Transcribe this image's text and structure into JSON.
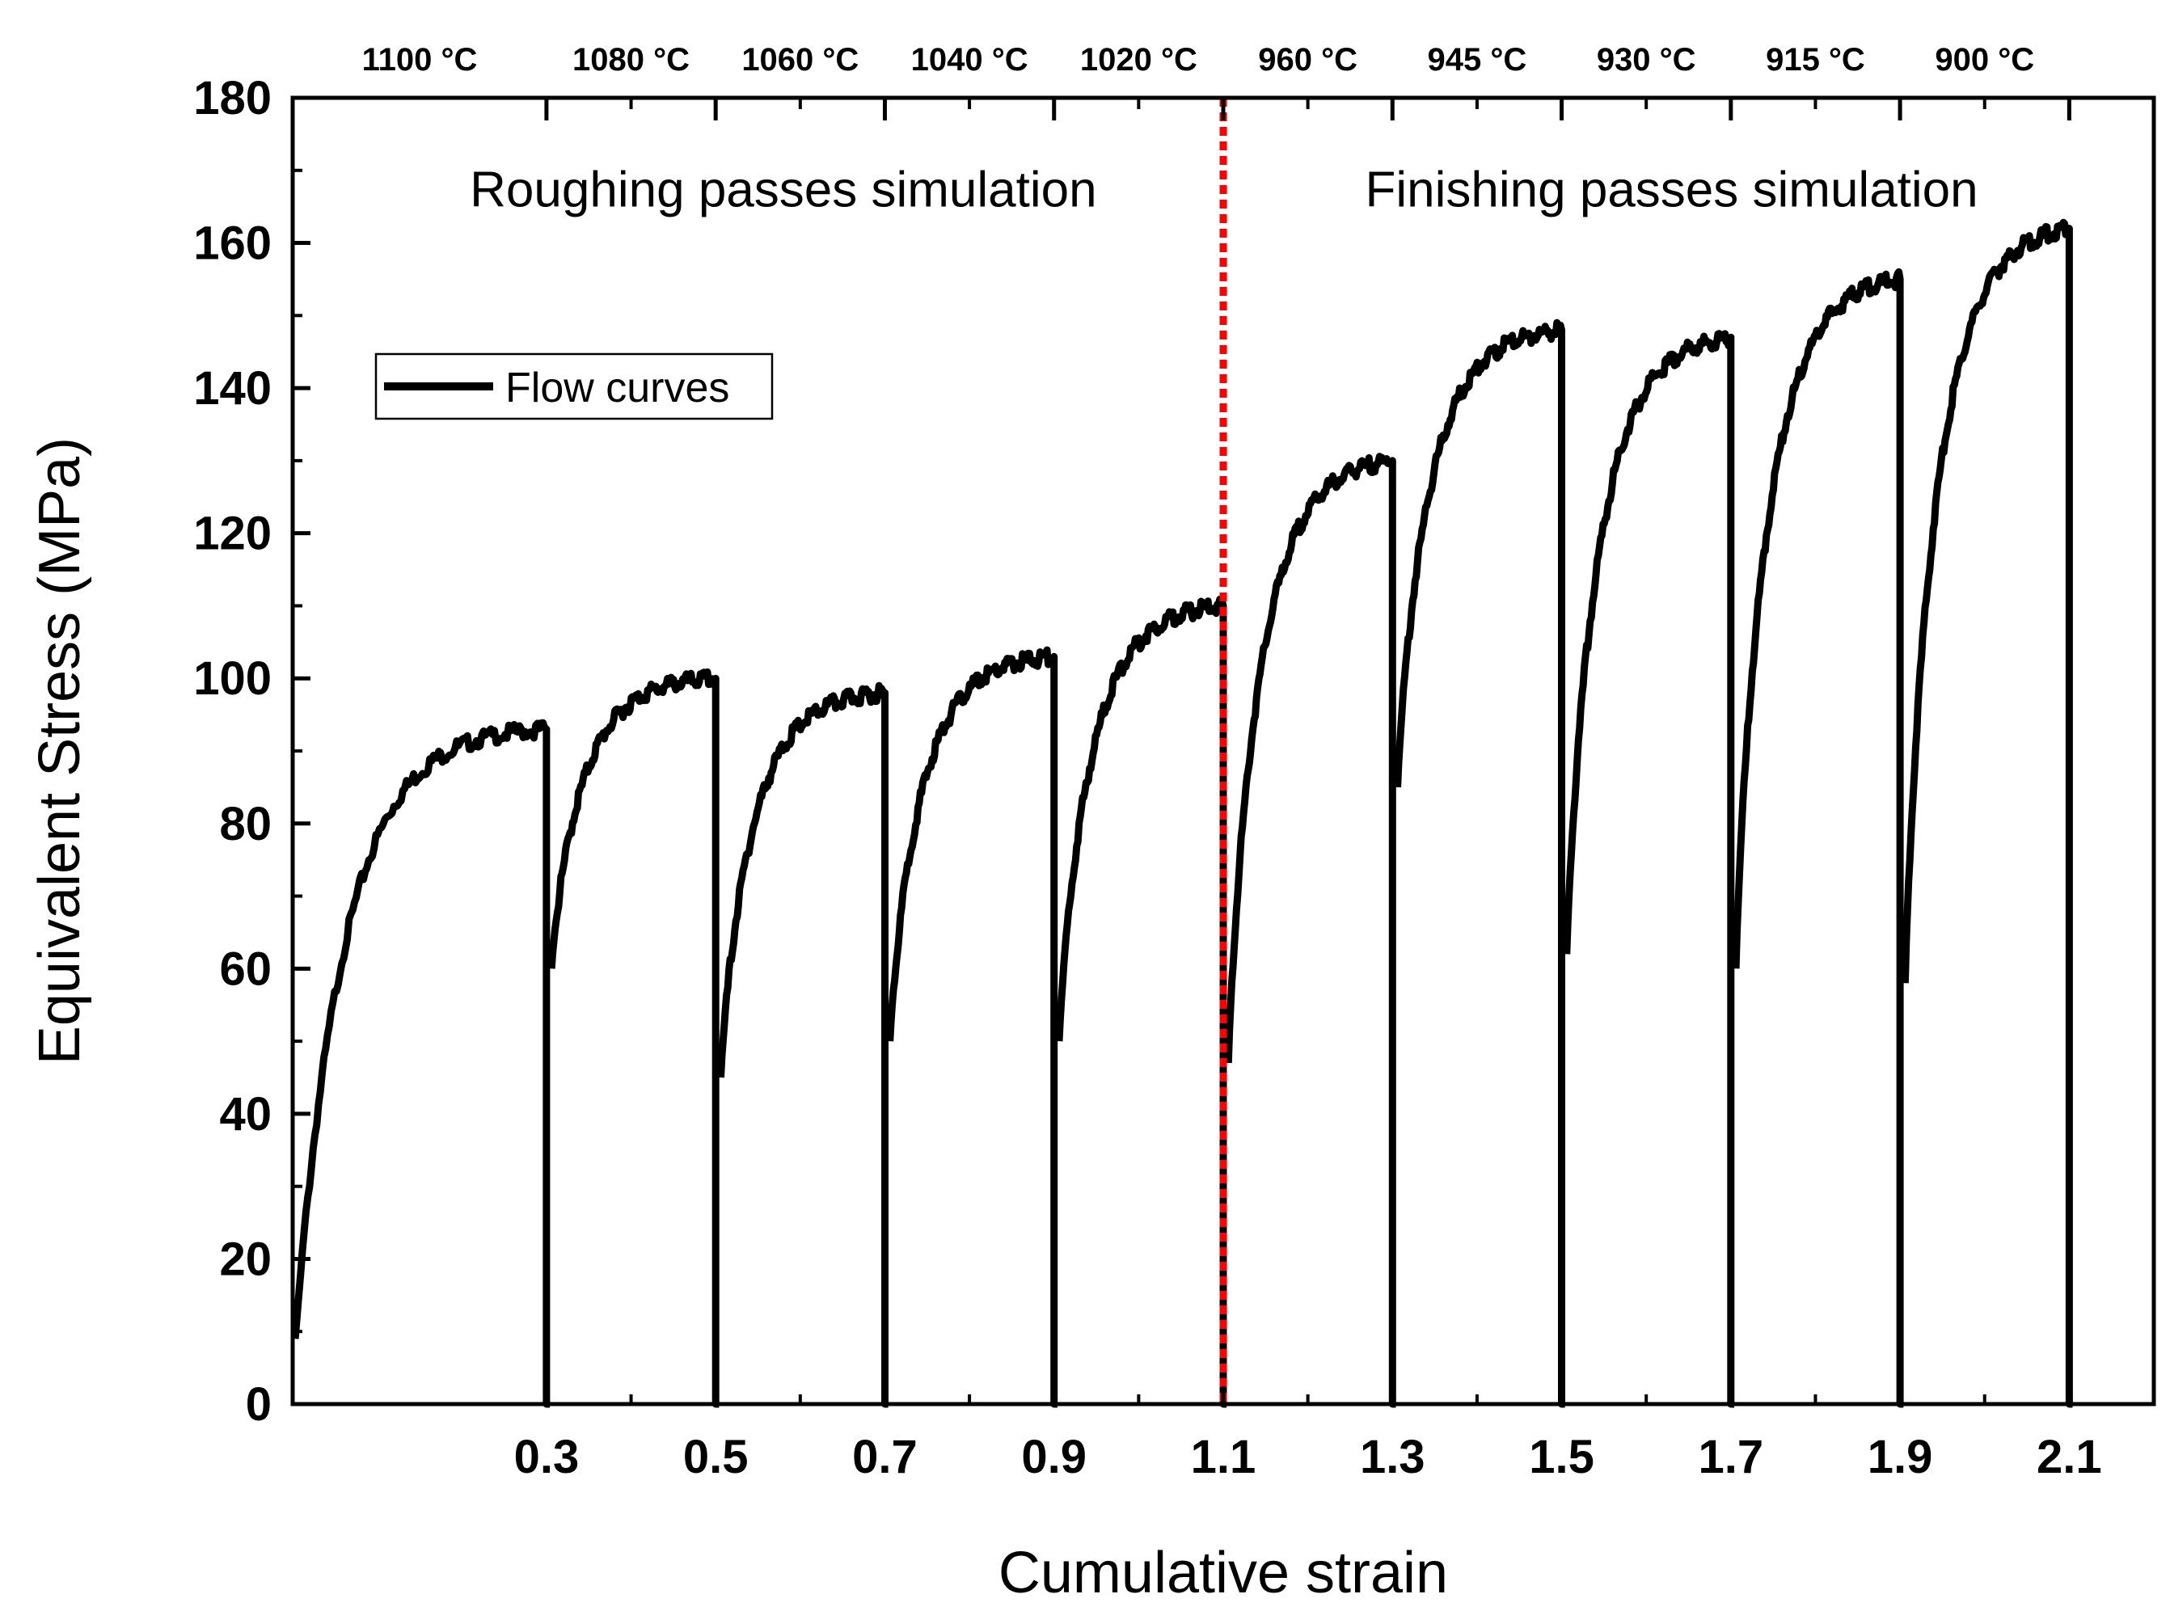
{
  "chart_data": {
    "type": "line",
    "title": "",
    "xlabel": "Cumulative strain",
    "ylabel": "Equivalent Stress (MPa)",
    "xlim": [
      0,
      2.2
    ],
    "ylim": [
      0,
      180
    ],
    "grid": false,
    "legend": {
      "position": "top-left",
      "entries": [
        "Flow curves"
      ]
    },
    "x_ticks": [
      "0.3",
      "0.5",
      "0.7",
      "0.9",
      "1.1",
      "1.3",
      "1.5",
      "1.7",
      "1.9",
      "2.1"
    ],
    "x_tick_values": [
      0.3,
      0.5,
      0.7,
      0.9,
      1.1,
      1.3,
      1.5,
      1.7,
      1.9,
      2.1
    ],
    "y_ticks": [
      "0",
      "20",
      "40",
      "60",
      "80",
      "100",
      "120",
      "140",
      "160",
      "180"
    ],
    "y_tick_values": [
      0,
      20,
      40,
      60,
      80,
      100,
      120,
      140,
      160,
      180
    ],
    "top_axis": {
      "boundaries": [
        0.3,
        0.5,
        0.7,
        0.9,
        1.1,
        1.3,
        1.5,
        1.7,
        1.9,
        2.1
      ],
      "labels": [
        {
          "text": "1100 °C",
          "x": 0.15
        },
        {
          "text": "1080 °C",
          "x": 0.4
        },
        {
          "text": "1060 °C",
          "x": 0.6
        },
        {
          "text": "1040 °C",
          "x": 0.8
        },
        {
          "text": "1020 °C",
          "x": 1.0
        },
        {
          "text": "960 °C",
          "x": 1.2
        },
        {
          "text": "945 °C",
          "x": 1.4
        },
        {
          "text": "930 °C",
          "x": 1.6
        },
        {
          "text": "915 °C",
          "x": 1.8
        },
        {
          "text": "900 °C",
          "x": 2.0
        }
      ]
    },
    "annotations": [
      {
        "text": "Roughing passes simulation",
        "x": 0.58,
        "y": 167
      },
      {
        "text": "Finishing passes simulation",
        "x": 1.63,
        "y": 167
      }
    ],
    "divider": {
      "x": 1.1,
      "color": "#ff0000",
      "style": "dotted"
    },
    "series": [
      {
        "name": "Flow curves",
        "color": "#000000",
        "passes": [
          {
            "start": 0.0,
            "end": 0.3,
            "start_stress": 9,
            "peak": 93,
            "drop_to": 0
          },
          {
            "start": 0.3,
            "end": 0.5,
            "start_stress": 60,
            "peak": 100,
            "drop_to": 0
          },
          {
            "start": 0.5,
            "end": 0.7,
            "start_stress": 45,
            "peak": 98,
            "drop_to": 0
          },
          {
            "start": 0.7,
            "end": 0.9,
            "start_stress": 50,
            "peak": 103,
            "drop_to": 0
          },
          {
            "start": 0.9,
            "end": 1.1,
            "start_stress": 50,
            "peak": 110,
            "drop_to": 0
          },
          {
            "start": 1.1,
            "end": 1.3,
            "start_stress": 47,
            "peak": 130,
            "drop_to": 0
          },
          {
            "start": 1.3,
            "end": 1.5,
            "start_stress": 85,
            "peak": 148,
            "drop_to": 0
          },
          {
            "start": 1.5,
            "end": 1.7,
            "start_stress": 62,
            "peak": 147,
            "drop_to": 0
          },
          {
            "start": 1.7,
            "end": 1.9,
            "start_stress": 60,
            "peak": 155,
            "drop_to": 0
          },
          {
            "start": 1.9,
            "end": 2.1,
            "start_stress": 58,
            "peak": 162,
            "drop_to": 0
          }
        ]
      }
    ]
  }
}
